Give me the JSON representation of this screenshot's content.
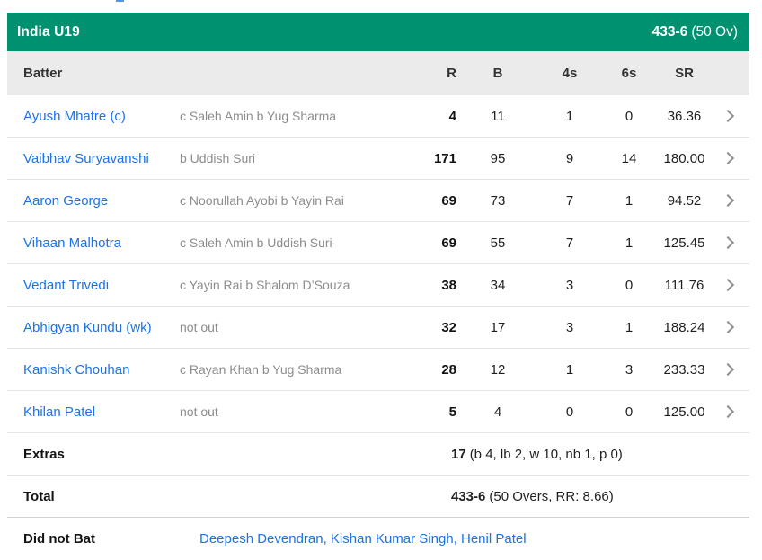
{
  "header": {
    "team": "India U19",
    "score": "433-6",
    "overs": "(50 Ov)"
  },
  "columns": {
    "batter": "Batter",
    "r": "R",
    "b": "B",
    "fours": "4s",
    "sixes": "6s",
    "sr": "SR"
  },
  "batters": [
    {
      "name": "Ayush Mhatre (c)",
      "dismissal": "c Saleh Amin b Yug Sharma",
      "r": "4",
      "b": "11",
      "fours": "1",
      "sixes": "0",
      "sr": "36.36"
    },
    {
      "name": "Vaibhav Suryavanshi",
      "dismissal": "b Uddish Suri",
      "r": "171",
      "b": "95",
      "fours": "9",
      "sixes": "14",
      "sr": "180.00"
    },
    {
      "name": "Aaron George",
      "dismissal": "c Noorullah Ayobi b Yayin Rai",
      "r": "69",
      "b": "73",
      "fours": "7",
      "sixes": "1",
      "sr": "94.52"
    },
    {
      "name": "Vihaan Malhotra",
      "dismissal": "c Saleh Amin b Uddish Suri",
      "r": "69",
      "b": "55",
      "fours": "7",
      "sixes": "1",
      "sr": "125.45"
    },
    {
      "name": "Vedant Trivedi",
      "dismissal": "c Yayin Rai b Shalom D’Souza",
      "r": "38",
      "b": "34",
      "fours": "3",
      "sixes": "0",
      "sr": "111.76"
    },
    {
      "name": "Abhigyan Kundu (wk)",
      "dismissal": "not out",
      "r": "32",
      "b": "17",
      "fours": "3",
      "sixes": "1",
      "sr": "188.24"
    },
    {
      "name": "Kanishk Chouhan",
      "dismissal": "c Rayan Khan b Yug Sharma",
      "r": "28",
      "b": "12",
      "fours": "1",
      "sixes": "3",
      "sr": "233.33"
    },
    {
      "name": "Khilan Patel",
      "dismissal": "not out",
      "r": "5",
      "b": "4",
      "fours": "0",
      "sixes": "0",
      "sr": "125.00"
    }
  ],
  "extras": {
    "label": "Extras",
    "value": "17",
    "detail": "(b 4, lb 2, w 10, nb 1, p 0)"
  },
  "total": {
    "label": "Total",
    "value": "433-6",
    "detail": "(50 Overs, RR: 8.66)"
  },
  "did_not_bat": {
    "label": "Did not Bat",
    "players": "Deepesh Devendran, Kishan Kumar Singh, Henil Patel"
  },
  "colors": {
    "team_bar": "#009170",
    "link": "#1a73e8",
    "header_bg": "#ebebeb",
    "dismissal_text": "#8d8d8d"
  }
}
